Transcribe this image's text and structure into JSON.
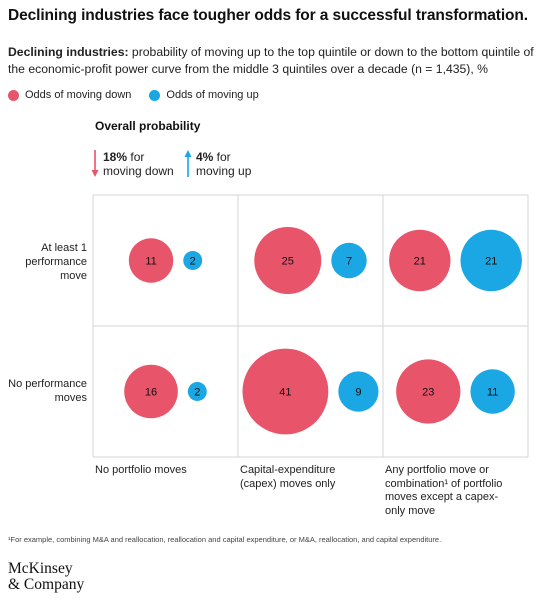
{
  "title": "Declining industries face tougher odds for a successful transformation.",
  "subtitle_bold": "Declining industries:",
  "subtitle_rest": " probability of moving up to the top quintile or down to the bottom quintile of the economic-profit power curve from the middle 3 quintiles over a decade (n = 1,435), %",
  "legend": {
    "down_label": "Odds of moving down",
    "up_label": "Odds of moving up"
  },
  "colors": {
    "down": "#e8546a",
    "up": "#1aa7e3",
    "grid": "#d6d6d6",
    "arrow_down": "#e8546a",
    "arrow_up": "#1aa7e3"
  },
  "overall": {
    "title": "Overall probability",
    "down_value": "18%",
    "down_text_1": " for",
    "down_text_2": "moving down",
    "up_value": "4%",
    "up_text_1": " for",
    "up_text_2": "moving up"
  },
  "row_labels": [
    "At least 1\nperformance\nmove",
    "No performance\nmoves"
  ],
  "col_labels": [
    "No portfolio moves",
    "Capital-expenditure\n(capex) moves only",
    "Any portfolio move or\ncombination¹ of portfolio\nmoves except a capex-\nonly move"
  ],
  "footnote": "¹For example, combining M&A and reallocation, reallocation and capital expenditure, or M&A, reallocation, and capital expenditure.",
  "logo": {
    "line1": "McKinsey",
    "line2": "& Company"
  },
  "chart_data": {
    "type": "bubble-grid",
    "unit": "%",
    "rows": [
      "At least 1 performance move",
      "No performance moves"
    ],
    "columns": [
      "No portfolio moves",
      "Capital-expenditure (capex) moves only",
      "Any portfolio move or combination of portfolio moves except a capex-only move"
    ],
    "series": [
      {
        "name": "Odds of moving down",
        "values": [
          [
            11,
            25,
            21
          ],
          [
            16,
            41,
            23
          ]
        ]
      },
      {
        "name": "Odds of moving up",
        "values": [
          [
            2,
            7,
            21
          ],
          [
            2,
            9,
            11
          ]
        ]
      }
    ],
    "overall": {
      "moving_down": 18,
      "moving_up": 4
    }
  }
}
